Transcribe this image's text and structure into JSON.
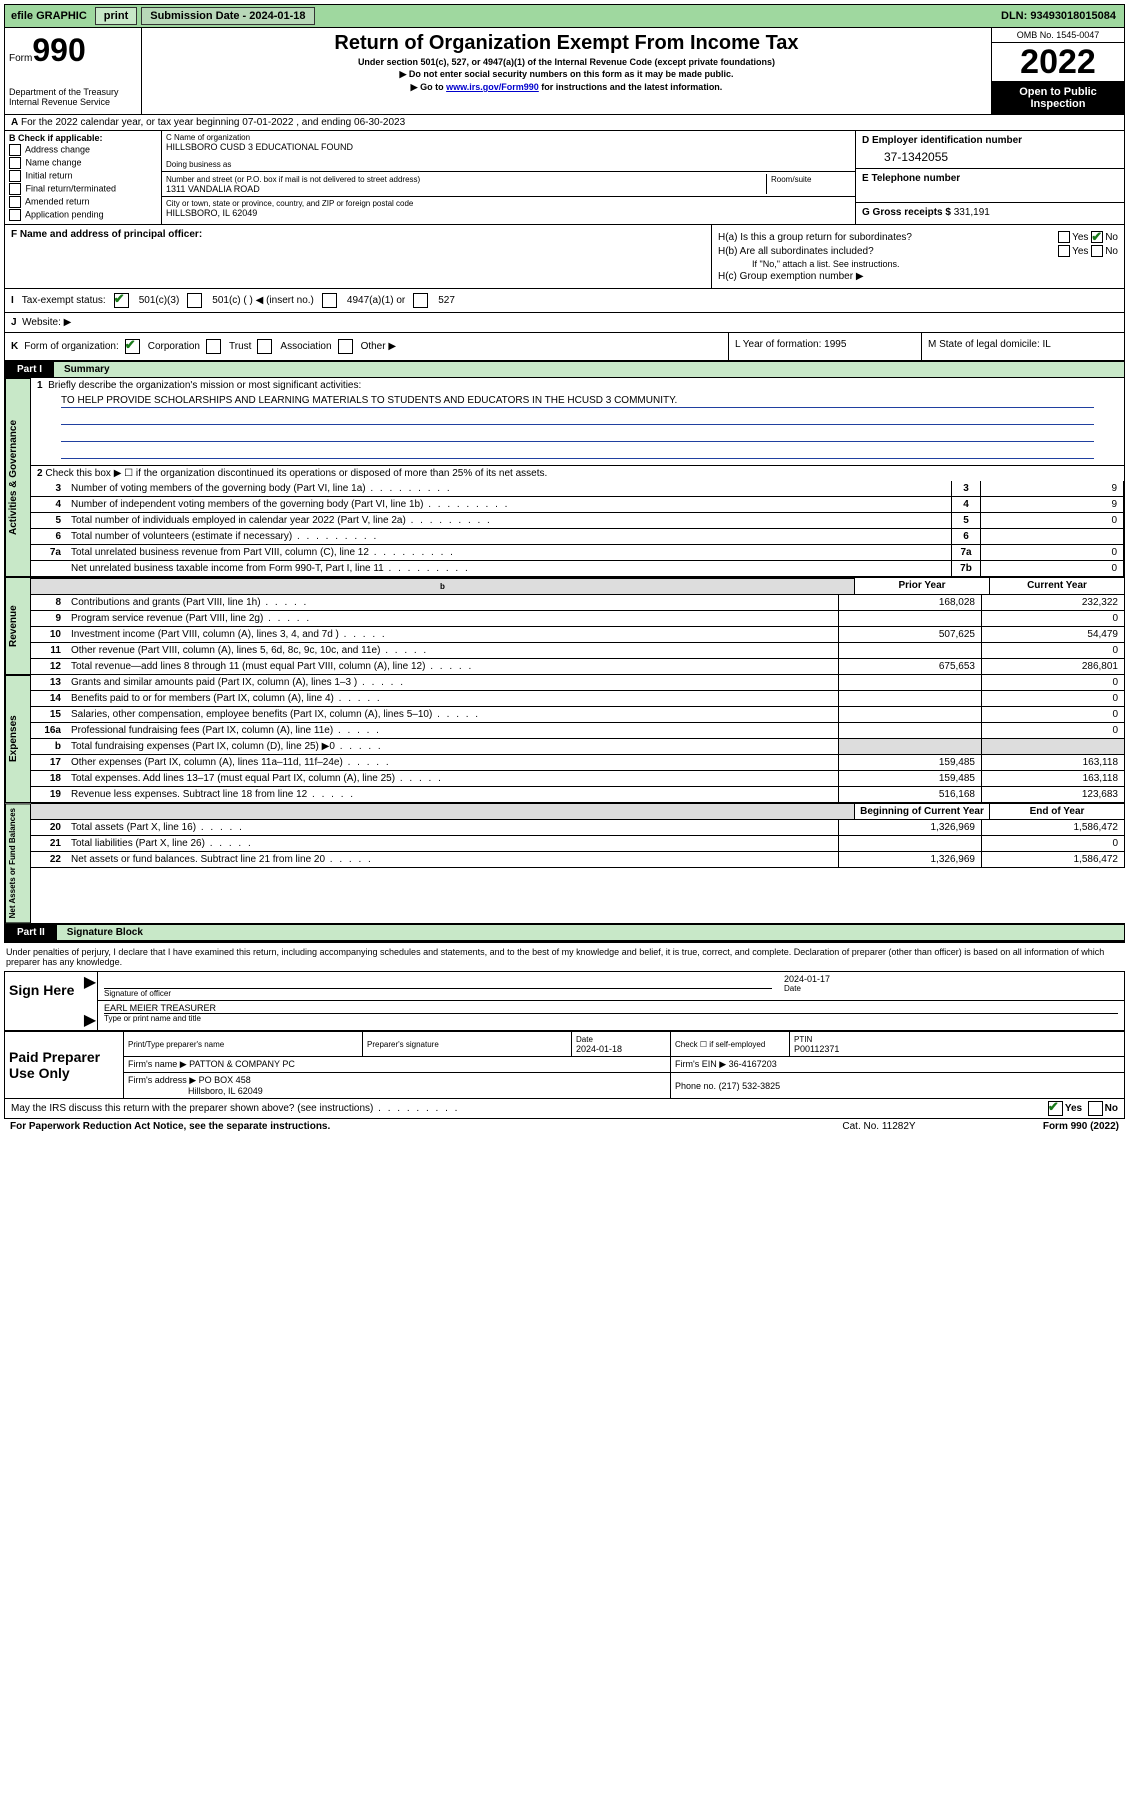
{
  "topbar": {
    "efile": "efile GRAPHIC",
    "print": "print",
    "submission_label": "Submission Date - 2024-01-18",
    "dln": "DLN: 93493018015084"
  },
  "header": {
    "form_word": "Form",
    "form_num": "990",
    "dept": "Department of the Treasury",
    "irs": "Internal Revenue Service",
    "title": "Return of Organization Exempt From Income Tax",
    "sub1": "Under section 501(c), 527, or 4947(a)(1) of the Internal Revenue Code (except private foundations)",
    "sub2": "Do not enter social security numbers on this form as it may be made public.",
    "sub3_pre": "Go to ",
    "sub3_link": "www.irs.gov/Form990",
    "sub3_post": " for instructions and the latest information.",
    "omb": "OMB No. 1545-0047",
    "year": "2022",
    "open": "Open to Public Inspection"
  },
  "rowA": {
    "label": "A",
    "text": "For the 2022 calendar year, or tax year beginning 07-01-2022   , and ending 06-30-2023"
  },
  "boxB": {
    "label": "B Check if applicable:",
    "items": [
      "Address change",
      "Name change",
      "Initial return",
      "Final return/terminated",
      "Amended return",
      "Application pending"
    ]
  },
  "boxC": {
    "name_label": "C Name of organization",
    "name": "HILLSBORO CUSD 3 EDUCATIONAL FOUND",
    "dba_label": "Doing business as",
    "dba": "",
    "street_label": "Number and street (or P.O. box if mail is not delivered to street address)",
    "room_label": "Room/suite",
    "street": "1311 VANDALIA ROAD",
    "city_label": "City or town, state or province, country, and ZIP or foreign postal code",
    "city": "HILLSBORO, IL  62049"
  },
  "boxD": {
    "label": "D Employer identification number",
    "value": "37-1342055"
  },
  "boxE": {
    "label": "E Telephone number",
    "value": ""
  },
  "boxG": {
    "label": "G Gross receipts $",
    "value": "331,191"
  },
  "boxF": {
    "label": "F Name and address of principal officer:",
    "value": ""
  },
  "boxH": {
    "ha": "H(a)  Is this a group return for subordinates?",
    "hb": "H(b)  Are all subordinates included?",
    "hb_note": "If \"No,\" attach a list. See instructions.",
    "hc": "H(c)  Group exemption number ▶",
    "yes": "Yes",
    "no": "No"
  },
  "rowI": {
    "label": "I",
    "text": "Tax-exempt status:",
    "opts": [
      "501(c)(3)",
      "501(c) (  ) ◀ (insert no.)",
      "4947(a)(1) or",
      "527"
    ]
  },
  "rowJ": {
    "label": "J",
    "text": "Website: ▶"
  },
  "rowK": {
    "label": "K",
    "text": "Form of organization:",
    "opts": [
      "Corporation",
      "Trust",
      "Association",
      "Other ▶"
    ]
  },
  "rowL": {
    "text": "L Year of formation: 1995"
  },
  "rowM": {
    "text": "M State of legal domicile: IL"
  },
  "partI": {
    "tab": "Part I",
    "title": "Summary"
  },
  "summary": {
    "l1_label": "1",
    "l1_text": "Briefly describe the organization's mission or most significant activities:",
    "l1_body": "TO HELP PROVIDE SCHOLARSHIPS AND LEARNING MATERIALS TO STUDENTS AND EDUCATORS IN THE HCUSD 3 COMMUNITY.",
    "l2": "Check this box ▶ ☐  if the organization discontinued its operations or disposed of more than 25% of its net assets.",
    "lines_gov": [
      {
        "n": "3",
        "d": "Number of voting members of the governing body (Part VI, line 1a)",
        "box": "3",
        "v": "9"
      },
      {
        "n": "4",
        "d": "Number of independent voting members of the governing body (Part VI, line 1b)",
        "box": "4",
        "v": "9"
      },
      {
        "n": "5",
        "d": "Total number of individuals employed in calendar year 2022 (Part V, line 2a)",
        "box": "5",
        "v": "0"
      },
      {
        "n": "6",
        "d": "Total number of volunteers (estimate if necessary)",
        "box": "6",
        "v": ""
      },
      {
        "n": "7a",
        "d": "Total unrelated business revenue from Part VIII, column (C), line 12",
        "box": "7a",
        "v": "0"
      },
      {
        "n": "",
        "d": "Net unrelated business taxable income from Form 990-T, Part I, line 11",
        "box": "7b",
        "v": "0"
      }
    ],
    "hdr_prior": "Prior Year",
    "hdr_curr": "Current Year",
    "rev": [
      {
        "n": "8",
        "d": "Contributions and grants (Part VIII, line 1h)",
        "p": "168,028",
        "c": "232,322"
      },
      {
        "n": "9",
        "d": "Program service revenue (Part VIII, line 2g)",
        "p": "",
        "c": "0"
      },
      {
        "n": "10",
        "d": "Investment income (Part VIII, column (A), lines 3, 4, and 7d )",
        "p": "507,625",
        "c": "54,479"
      },
      {
        "n": "11",
        "d": "Other revenue (Part VIII, column (A), lines 5, 6d, 8c, 9c, 10c, and 11e)",
        "p": "",
        "c": "0"
      },
      {
        "n": "12",
        "d": "Total revenue—add lines 8 through 11 (must equal Part VIII, column (A), line 12)",
        "p": "675,653",
        "c": "286,801"
      }
    ],
    "exp": [
      {
        "n": "13",
        "d": "Grants and similar amounts paid (Part IX, column (A), lines 1–3 )",
        "p": "",
        "c": "0"
      },
      {
        "n": "14",
        "d": "Benefits paid to or for members (Part IX, column (A), line 4)",
        "p": "",
        "c": "0"
      },
      {
        "n": "15",
        "d": "Salaries, other compensation, employee benefits (Part IX, column (A), lines 5–10)",
        "p": "",
        "c": "0"
      },
      {
        "n": "16a",
        "d": "Professional fundraising fees (Part IX, column (A), line 11e)",
        "p": "",
        "c": "0"
      },
      {
        "n": "b",
        "d": "Total fundraising expenses (Part IX, column (D), line 25) ▶0",
        "p": "shaded",
        "c": "shaded"
      },
      {
        "n": "17",
        "d": "Other expenses (Part IX, column (A), lines 11a–11d, 11f–24e)",
        "p": "159,485",
        "c": "163,118"
      },
      {
        "n": "18",
        "d": "Total expenses. Add lines 13–17 (must equal Part IX, column (A), line 25)",
        "p": "159,485",
        "c": "163,118"
      },
      {
        "n": "19",
        "d": "Revenue less expenses. Subtract line 18 from line 12",
        "p": "516,168",
        "c": "123,683"
      }
    ],
    "hdr_beg": "Beginning of Current Year",
    "hdr_end": "End of Year",
    "na": [
      {
        "n": "20",
        "d": "Total assets (Part X, line 16)",
        "p": "1,326,969",
        "c": "1,586,472"
      },
      {
        "n": "21",
        "d": "Total liabilities (Part X, line 26)",
        "p": "",
        "c": "0"
      },
      {
        "n": "22",
        "d": "Net assets or fund balances. Subtract line 21 from line 20",
        "p": "1,326,969",
        "c": "1,586,472"
      }
    ],
    "vtabs": {
      "gov": "Activities & Governance",
      "rev": "Revenue",
      "exp": "Expenses",
      "na": "Net Assets or Fund Balances"
    }
  },
  "partII": {
    "tab": "Part II",
    "title": "Signature Block"
  },
  "penalties": "Under penalties of perjury, I declare that I have examined this return, including accompanying schedules and statements, and to the best of my knowledge and belief, it is true, correct, and complete. Declaration of preparer (other than officer) is based on all information of which preparer has any knowledge.",
  "sign": {
    "here": "Sign Here",
    "sig_label": "Signature of officer",
    "date_label": "Date",
    "date": "2024-01-17",
    "name": "EARL MEIER  TREASURER",
    "name_label": "Type or print name and title"
  },
  "prep": {
    "left": "Paid Preparer Use Only",
    "h1": "Print/Type preparer's name",
    "h2": "Preparer's signature",
    "h3": "Date",
    "date": "2024-01-18",
    "h4": "Check ☐ if self-employed",
    "h5": "PTIN",
    "ptin": "P00112371",
    "firm_name_l": "Firm's name    ▶",
    "firm_name": "PATTON & COMPANY PC",
    "firm_ein_l": "Firm's EIN ▶",
    "firm_ein": "36-4167203",
    "firm_addr_l": "Firm's address ▶",
    "firm_addr1": "PO BOX 458",
    "firm_addr2": "Hillsboro, IL  62049",
    "phone_l": "Phone no.",
    "phone": "(217) 532-3825"
  },
  "discuss": {
    "text": "May the IRS discuss this return with the preparer shown above? (see instructions)",
    "yes": "Yes",
    "no": "No"
  },
  "footer": {
    "pra": "For Paperwork Reduction Act Notice, see the separate instructions.",
    "cat": "Cat. No. 11282Y",
    "form": "Form 990 (2022)"
  }
}
